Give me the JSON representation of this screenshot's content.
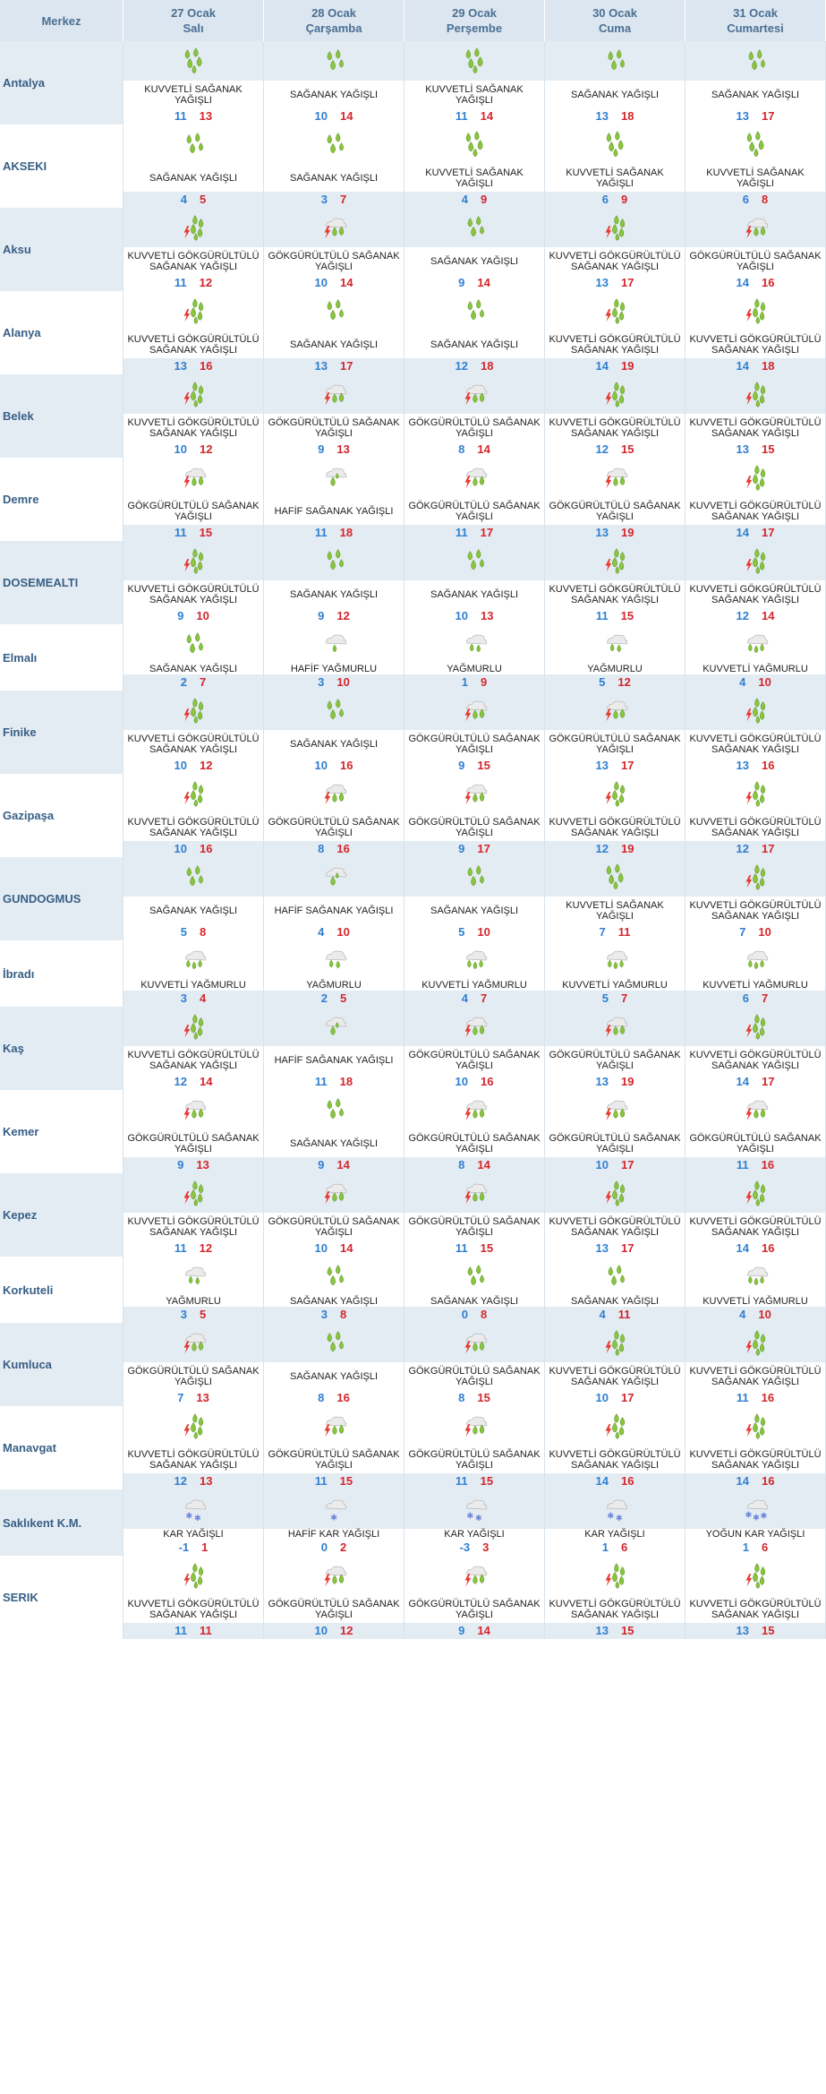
{
  "header": {
    "merkez_label": "Merkez",
    "days": [
      {
        "date": "27 Ocak",
        "dow": "Salı"
      },
      {
        "date": "28 Ocak",
        "dow": "Çarşamba"
      },
      {
        "date": "29 Ocak",
        "dow": "Perşembe"
      },
      {
        "date": "30 Ocak",
        "dow": "Cuma"
      },
      {
        "date": "31 Ocak",
        "dow": "Cumartesi"
      }
    ]
  },
  "colors": {
    "header_bg": "#dbe6f0",
    "stripe_bg": "#e4ecf3",
    "name_text": "#385f86",
    "low_temp": "#2f7fd0",
    "high_temp": "#d4262c",
    "drop_green": "#8bc53f",
    "cloud": "#e6e6e6",
    "bolt": "#e8392f",
    "snow": "#6d86d8"
  },
  "rows": [
    {
      "name": "Antalya",
      "days": [
        {
          "icon": "heavy-shower-icon",
          "desc": "KUVVETLİ SAĞANAK YAĞIŞLI",
          "low": "11",
          "high": "13"
        },
        {
          "icon": "shower-icon",
          "desc": "SAĞANAK YAĞIŞLI",
          "low": "10",
          "high": "14"
        },
        {
          "icon": "heavy-shower-icon",
          "desc": "KUVVETLİ SAĞANAK YAĞIŞLI",
          "low": "11",
          "high": "14"
        },
        {
          "icon": "shower-icon",
          "desc": "SAĞANAK YAĞIŞLI",
          "low": "13",
          "high": "18"
        },
        {
          "icon": "shower-icon",
          "desc": "SAĞANAK YAĞIŞLI",
          "low": "13",
          "high": "17"
        }
      ]
    },
    {
      "name": "AKSEKI",
      "days": [
        {
          "icon": "shower-icon",
          "desc": "SAĞANAK YAĞIŞLI",
          "low": "4",
          "high": "5"
        },
        {
          "icon": "shower-icon",
          "desc": "SAĞANAK YAĞIŞLI",
          "low": "3",
          "high": "7"
        },
        {
          "icon": "heavy-shower-icon",
          "desc": "KUVVETLİ SAĞANAK YAĞIŞLI",
          "low": "4",
          "high": "9"
        },
        {
          "icon": "heavy-shower-icon",
          "desc": "KUVVETLİ SAĞANAK YAĞIŞLI",
          "low": "6",
          "high": "9"
        },
        {
          "icon": "heavy-shower-icon",
          "desc": "KUVVETLİ SAĞANAK YAĞIŞLI",
          "low": "6",
          "high": "8"
        }
      ]
    },
    {
      "name": "Aksu",
      "days": [
        {
          "icon": "heavy-thunder-shower-icon",
          "desc": "KUVVETLİ GÖKGÜRÜLTÜLÜ SAĞANAK YAĞIŞLI",
          "low": "11",
          "high": "12"
        },
        {
          "icon": "thunder-shower-icon",
          "desc": "GÖKGÜRÜLTÜLÜ SAĞANAK YAĞIŞLI",
          "low": "10",
          "high": "14"
        },
        {
          "icon": "shower-icon",
          "desc": "SAĞANAK YAĞIŞLI",
          "low": "9",
          "high": "14"
        },
        {
          "icon": "heavy-thunder-shower-icon",
          "desc": "KUVVETLİ GÖKGÜRÜLTÜLÜ SAĞANAK YAĞIŞLI",
          "low": "13",
          "high": "17"
        },
        {
          "icon": "thunder-shower-icon",
          "desc": "GÖKGÜRÜLTÜLÜ SAĞANAK YAĞIŞLI",
          "low": "14",
          "high": "16"
        }
      ]
    },
    {
      "name": "Alanya",
      "days": [
        {
          "icon": "heavy-thunder-shower-icon",
          "desc": "KUVVETLİ GÖKGÜRÜLTÜLÜ SAĞANAK YAĞIŞLI",
          "low": "13",
          "high": "16"
        },
        {
          "icon": "shower-icon",
          "desc": "SAĞANAK YAĞIŞLI",
          "low": "13",
          "high": "17"
        },
        {
          "icon": "shower-icon",
          "desc": "SAĞANAK YAĞIŞLI",
          "low": "12",
          "high": "18"
        },
        {
          "icon": "heavy-thunder-shower-icon",
          "desc": "KUVVETLİ GÖKGÜRÜLTÜLÜ SAĞANAK YAĞIŞLI",
          "low": "14",
          "high": "19"
        },
        {
          "icon": "heavy-thunder-shower-icon",
          "desc": "KUVVETLİ GÖKGÜRÜLTÜLÜ SAĞANAK YAĞIŞLI",
          "low": "14",
          "high": "18"
        }
      ]
    },
    {
      "name": "Belek",
      "days": [
        {
          "icon": "heavy-thunder-shower-icon",
          "desc": "KUVVETLİ GÖKGÜRÜLTÜLÜ SAĞANAK YAĞIŞLI",
          "low": "10",
          "high": "12"
        },
        {
          "icon": "thunder-shower-icon",
          "desc": "GÖKGÜRÜLTÜLÜ SAĞANAK YAĞIŞLI",
          "low": "9",
          "high": "13"
        },
        {
          "icon": "thunder-shower-icon",
          "desc": "GÖKGÜRÜLTÜLÜ SAĞANAK YAĞIŞLI",
          "low": "8",
          "high": "14"
        },
        {
          "icon": "heavy-thunder-shower-icon",
          "desc": "KUVVETLİ GÖKGÜRÜLTÜLÜ SAĞANAK YAĞIŞLI",
          "low": "12",
          "high": "15"
        },
        {
          "icon": "heavy-thunder-shower-icon",
          "desc": "KUVVETLİ GÖKGÜRÜLTÜLÜ SAĞANAK YAĞIŞLI",
          "low": "13",
          "high": "15"
        }
      ]
    },
    {
      "name": "Demre",
      "days": [
        {
          "icon": "thunder-shower-icon",
          "desc": "GÖKGÜRÜLTÜLÜ SAĞANAK YAĞIŞLI",
          "low": "11",
          "high": "15"
        },
        {
          "icon": "light-shower-icon",
          "desc": "HAFİF SAĞANAK YAĞIŞLI",
          "low": "11",
          "high": "18"
        },
        {
          "icon": "thunder-shower-icon",
          "desc": "GÖKGÜRÜLTÜLÜ SAĞANAK YAĞIŞLI",
          "low": "11",
          "high": "17"
        },
        {
          "icon": "thunder-shower-icon",
          "desc": "GÖKGÜRÜLTÜLÜ SAĞANAK YAĞIŞLI",
          "low": "13",
          "high": "19"
        },
        {
          "icon": "heavy-thunder-shower-icon",
          "desc": "KUVVETLİ GÖKGÜRÜLTÜLÜ SAĞANAK YAĞIŞLI",
          "low": "14",
          "high": "17"
        }
      ]
    },
    {
      "name": "DOSEMEALTI",
      "days": [
        {
          "icon": "heavy-thunder-shower-icon",
          "desc": "KUVVETLİ GÖKGÜRÜLTÜLÜ SAĞANAK YAĞIŞLI",
          "low": "9",
          "high": "10"
        },
        {
          "icon": "shower-icon",
          "desc": "SAĞANAK YAĞIŞLI",
          "low": "9",
          "high": "12"
        },
        {
          "icon": "shower-icon",
          "desc": "SAĞANAK YAĞIŞLI",
          "low": "10",
          "high": "13"
        },
        {
          "icon": "heavy-thunder-shower-icon",
          "desc": "KUVVETLİ GÖKGÜRÜLTÜLÜ SAĞANAK YAĞIŞLI",
          "low": "11",
          "high": "15"
        },
        {
          "icon": "heavy-thunder-shower-icon",
          "desc": "KUVVETLİ GÖKGÜRÜLTÜLÜ SAĞANAK YAĞIŞLI",
          "low": "12",
          "high": "14"
        }
      ]
    },
    {
      "name": "Elmalı",
      "days": [
        {
          "icon": "shower-icon",
          "desc": "SAĞANAK YAĞIŞLI",
          "low": "2",
          "high": "7"
        },
        {
          "icon": "light-rain-icon",
          "desc": "HAFİF YAĞMURLU",
          "low": "3",
          "high": "10"
        },
        {
          "icon": "rain-icon",
          "desc": "YAĞMURLU",
          "low": "1",
          "high": "9"
        },
        {
          "icon": "rain-icon",
          "desc": "YAĞMURLU",
          "low": "5",
          "high": "12"
        },
        {
          "icon": "heavy-rain-icon",
          "desc": "KUVVETLİ YAĞMURLU",
          "low": "4",
          "high": "10"
        }
      ]
    },
    {
      "name": "Finike",
      "days": [
        {
          "icon": "heavy-thunder-shower-icon",
          "desc": "KUVVETLİ GÖKGÜRÜLTÜLÜ SAĞANAK YAĞIŞLI",
          "low": "10",
          "high": "12"
        },
        {
          "icon": "shower-icon",
          "desc": "SAĞANAK YAĞIŞLI",
          "low": "10",
          "high": "16"
        },
        {
          "icon": "thunder-shower-icon",
          "desc": "GÖKGÜRÜLTÜLÜ SAĞANAK YAĞIŞLI",
          "low": "9",
          "high": "15"
        },
        {
          "icon": "thunder-shower-icon",
          "desc": "GÖKGÜRÜLTÜLÜ SAĞANAK YAĞIŞLI",
          "low": "13",
          "high": "17"
        },
        {
          "icon": "heavy-thunder-shower-icon",
          "desc": "KUVVETLİ GÖKGÜRÜLTÜLÜ SAĞANAK YAĞIŞLI",
          "low": "13",
          "high": "16"
        }
      ]
    },
    {
      "name": "Gazipaşa",
      "days": [
        {
          "icon": "heavy-thunder-shower-icon",
          "desc": "KUVVETLİ GÖKGÜRÜLTÜLÜ SAĞANAK YAĞIŞLI",
          "low": "10",
          "high": "16"
        },
        {
          "icon": "thunder-shower-icon",
          "desc": "GÖKGÜRÜLTÜLÜ SAĞANAK YAĞIŞLI",
          "low": "8",
          "high": "16"
        },
        {
          "icon": "thunder-shower-icon",
          "desc": "GÖKGÜRÜLTÜLÜ SAĞANAK YAĞIŞLI",
          "low": "9",
          "high": "17"
        },
        {
          "icon": "heavy-thunder-shower-icon",
          "desc": "KUVVETLİ GÖKGÜRÜLTÜLÜ SAĞANAK YAĞIŞLI",
          "low": "12",
          "high": "19"
        },
        {
          "icon": "heavy-thunder-shower-icon",
          "desc": "KUVVETLİ GÖKGÜRÜLTÜLÜ SAĞANAK YAĞIŞLI",
          "low": "12",
          "high": "17"
        }
      ]
    },
    {
      "name": "GUNDOGMUS",
      "days": [
        {
          "icon": "shower-icon",
          "desc": "SAĞANAK YAĞIŞLI",
          "low": "5",
          "high": "8"
        },
        {
          "icon": "light-shower-icon",
          "desc": "HAFİF SAĞANAK YAĞIŞLI",
          "low": "4",
          "high": "10"
        },
        {
          "icon": "shower-icon",
          "desc": "SAĞANAK YAĞIŞLI",
          "low": "5",
          "high": "10"
        },
        {
          "icon": "heavy-shower-icon",
          "desc": "KUVVETLİ SAĞANAK YAĞIŞLI",
          "low": "7",
          "high": "11"
        },
        {
          "icon": "heavy-thunder-shower-icon",
          "desc": "KUVVETLİ GÖKGÜRÜLTÜLÜ SAĞANAK YAĞIŞLI",
          "low": "7",
          "high": "10"
        }
      ]
    },
    {
      "name": "İbradı",
      "days": [
        {
          "icon": "heavy-rain-icon",
          "desc": "KUVVETLİ YAĞMURLU",
          "low": "3",
          "high": "4"
        },
        {
          "icon": "rain-icon",
          "desc": "YAĞMURLU",
          "low": "2",
          "high": "5"
        },
        {
          "icon": "heavy-rain-icon",
          "desc": "KUVVETLİ YAĞMURLU",
          "low": "4",
          "high": "7"
        },
        {
          "icon": "heavy-rain-icon",
          "desc": "KUVVETLİ YAĞMURLU",
          "low": "5",
          "high": "7"
        },
        {
          "icon": "heavy-rain-icon",
          "desc": "KUVVETLİ YAĞMURLU",
          "low": "6",
          "high": "7"
        }
      ]
    },
    {
      "name": "Kaş",
      "days": [
        {
          "icon": "heavy-thunder-shower-icon",
          "desc": "KUVVETLİ GÖKGÜRÜLTÜLÜ SAĞANAK YAĞIŞLI",
          "low": "12",
          "high": "14"
        },
        {
          "icon": "light-shower-icon",
          "desc": "HAFİF SAĞANAK YAĞIŞLI",
          "low": "11",
          "high": "18"
        },
        {
          "icon": "thunder-shower-icon",
          "desc": "GÖKGÜRÜLTÜLÜ SAĞANAK YAĞIŞLI",
          "low": "10",
          "high": "16"
        },
        {
          "icon": "thunder-shower-icon",
          "desc": "GÖKGÜRÜLTÜLÜ SAĞANAK YAĞIŞLI",
          "low": "13",
          "high": "19"
        },
        {
          "icon": "heavy-thunder-shower-icon",
          "desc": "KUVVETLİ GÖKGÜRÜLTÜLÜ SAĞANAK YAĞIŞLI",
          "low": "14",
          "high": "17"
        }
      ]
    },
    {
      "name": "Kemer",
      "days": [
        {
          "icon": "thunder-shower-icon",
          "desc": "GÖKGÜRÜLTÜLÜ SAĞANAK YAĞIŞLI",
          "low": "9",
          "high": "13"
        },
        {
          "icon": "shower-icon",
          "desc": "SAĞANAK YAĞIŞLI",
          "low": "9",
          "high": "14"
        },
        {
          "icon": "thunder-shower-icon",
          "desc": "GÖKGÜRÜLTÜLÜ SAĞANAK YAĞIŞLI",
          "low": "8",
          "high": "14"
        },
        {
          "icon": "thunder-shower-icon",
          "desc": "GÖKGÜRÜLTÜLÜ SAĞANAK YAĞIŞLI",
          "low": "10",
          "high": "17"
        },
        {
          "icon": "thunder-shower-icon",
          "desc": "GÖKGÜRÜLTÜLÜ SAĞANAK YAĞIŞLI",
          "low": "11",
          "high": "16"
        }
      ]
    },
    {
      "name": "Kepez",
      "days": [
        {
          "icon": "heavy-thunder-shower-icon",
          "desc": "KUVVETLİ GÖKGÜRÜLTÜLÜ SAĞANAK YAĞIŞLI",
          "low": "11",
          "high": "12"
        },
        {
          "icon": "thunder-shower-icon",
          "desc": "GÖKGÜRÜLTÜLÜ SAĞANAK YAĞIŞLI",
          "low": "10",
          "high": "14"
        },
        {
          "icon": "thunder-shower-icon",
          "desc": "GÖKGÜRÜLTÜLÜ SAĞANAK YAĞIŞLI",
          "low": "11",
          "high": "15"
        },
        {
          "icon": "heavy-thunder-shower-icon",
          "desc": "KUVVETLİ GÖKGÜRÜLTÜLÜ SAĞANAK YAĞIŞLI",
          "low": "13",
          "high": "17"
        },
        {
          "icon": "heavy-thunder-shower-icon",
          "desc": "KUVVETLİ GÖKGÜRÜLTÜLÜ SAĞANAK YAĞIŞLI",
          "low": "14",
          "high": "16"
        }
      ]
    },
    {
      "name": "Korkuteli",
      "days": [
        {
          "icon": "rain-icon",
          "desc": "YAĞMURLU",
          "low": "3",
          "high": "5"
        },
        {
          "icon": "shower-icon",
          "desc": "SAĞANAK YAĞIŞLI",
          "low": "3",
          "high": "8"
        },
        {
          "icon": "shower-icon",
          "desc": "SAĞANAK YAĞIŞLI",
          "low": "0",
          "high": "8"
        },
        {
          "icon": "shower-icon",
          "desc": "SAĞANAK YAĞIŞLI",
          "low": "4",
          "high": "11"
        },
        {
          "icon": "heavy-rain-icon",
          "desc": "KUVVETLİ YAĞMURLU",
          "low": "4",
          "high": "10"
        }
      ]
    },
    {
      "name": "Kumluca",
      "days": [
        {
          "icon": "thunder-shower-icon",
          "desc": "GÖKGÜRÜLTÜLÜ SAĞANAK YAĞIŞLI",
          "low": "7",
          "high": "13"
        },
        {
          "icon": "shower-icon",
          "desc": "SAĞANAK YAĞIŞLI",
          "low": "8",
          "high": "16"
        },
        {
          "icon": "thunder-shower-icon",
          "desc": "GÖKGÜRÜLTÜLÜ SAĞANAK YAĞIŞLI",
          "low": "8",
          "high": "15"
        },
        {
          "icon": "heavy-thunder-shower-icon",
          "desc": "KUVVETLİ GÖKGÜRÜLTÜLÜ SAĞANAK YAĞIŞLI",
          "low": "10",
          "high": "17"
        },
        {
          "icon": "heavy-thunder-shower-icon",
          "desc": "KUVVETLİ GÖKGÜRÜLTÜLÜ SAĞANAK YAĞIŞLI",
          "low": "11",
          "high": "16"
        }
      ]
    },
    {
      "name": "Manavgat",
      "days": [
        {
          "icon": "heavy-thunder-shower-icon",
          "desc": "KUVVETLİ GÖKGÜRÜLTÜLÜ SAĞANAK YAĞIŞLI",
          "low": "12",
          "high": "13"
        },
        {
          "icon": "thunder-shower-icon",
          "desc": "GÖKGÜRÜLTÜLÜ SAĞANAK YAĞIŞLI",
          "low": "11",
          "high": "15"
        },
        {
          "icon": "thunder-shower-icon",
          "desc": "GÖKGÜRÜLTÜLÜ SAĞANAK YAĞIŞLI",
          "low": "11",
          "high": "15"
        },
        {
          "icon": "heavy-thunder-shower-icon",
          "desc": "KUVVETLİ GÖKGÜRÜLTÜLÜ SAĞANAK YAĞIŞLI",
          "low": "14",
          "high": "16"
        },
        {
          "icon": "heavy-thunder-shower-icon",
          "desc": "KUVVETLİ GÖKGÜRÜLTÜLÜ SAĞANAK YAĞIŞLI",
          "low": "14",
          "high": "16"
        }
      ]
    },
    {
      "name": "Saklıkent K.M.",
      "days": [
        {
          "icon": "snow-icon",
          "desc": "KAR YAĞIŞLI",
          "low": "-1",
          "high": "1"
        },
        {
          "icon": "light-snow-icon",
          "desc": "HAFİF KAR YAĞIŞLI",
          "low": "0",
          "high": "2"
        },
        {
          "icon": "snow-icon",
          "desc": "KAR YAĞIŞLI",
          "low": "-3",
          "high": "3"
        },
        {
          "icon": "snow-icon",
          "desc": "KAR YAĞIŞLI",
          "low": "1",
          "high": "6"
        },
        {
          "icon": "heavy-snow-icon",
          "desc": "YOĞUN KAR YAĞIŞLI",
          "low": "1",
          "high": "6"
        }
      ]
    },
    {
      "name": "SERIK",
      "days": [
        {
          "icon": "heavy-thunder-shower-icon",
          "desc": "KUVVETLİ GÖKGÜRÜLTÜLÜ SAĞANAK YAĞIŞLI",
          "low": "11",
          "high": "11"
        },
        {
          "icon": "thunder-shower-icon",
          "desc": "GÖKGÜRÜLTÜLÜ SAĞANAK YAĞIŞLI",
          "low": "10",
          "high": "12"
        },
        {
          "icon": "thunder-shower-icon",
          "desc": "GÖKGÜRÜLTÜLÜ SAĞANAK YAĞIŞLI",
          "low": "9",
          "high": "14"
        },
        {
          "icon": "heavy-thunder-shower-icon",
          "desc": "KUVVETLİ GÖKGÜRÜLTÜLÜ SAĞANAK YAĞIŞLI",
          "low": "13",
          "high": "15"
        },
        {
          "icon": "heavy-thunder-shower-icon",
          "desc": "KUVVETLİ GÖKGÜRÜLTÜLÜ SAĞANAK YAĞIŞLI",
          "low": "13",
          "high": "15"
        }
      ]
    }
  ]
}
